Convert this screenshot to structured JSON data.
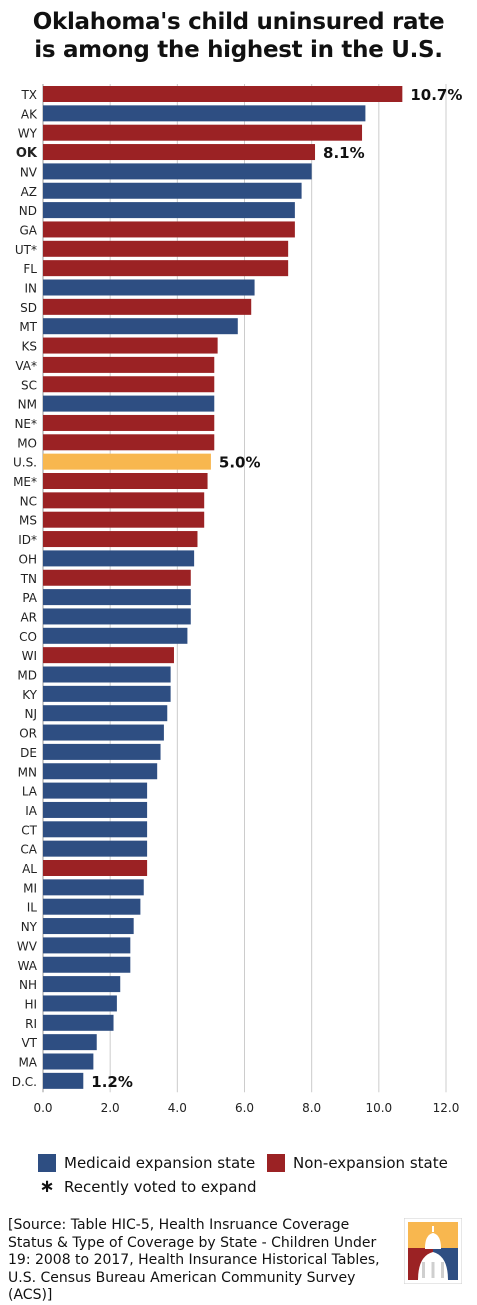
{
  "title_line1": "Oklahoma's child uninsured rate",
  "title_line2": "is among the highest in the U.S.",
  "colors": {
    "expansion": "#2e4e82",
    "non_expansion": "#9b2224",
    "us": "#f8b74f",
    "grid": "#cccccc"
  },
  "chart_data": {
    "type": "bar",
    "orientation": "horizontal",
    "title": "Oklahoma's child uninsured rate is among the highest in the U.S.",
    "xlim": [
      0,
      12
    ],
    "x_ticks": [
      "0.0",
      "2.0",
      "4.0",
      "6.0",
      "8.0",
      "10.0",
      "12.0"
    ],
    "grid": true,
    "bars": [
      {
        "label": "TX",
        "value": 10.7,
        "group": "non_expansion",
        "data_label": "10.7%"
      },
      {
        "label": "AK",
        "value": 9.6,
        "group": "expansion"
      },
      {
        "label": "WY",
        "value": 9.5,
        "group": "non_expansion"
      },
      {
        "label": "OK",
        "value": 8.1,
        "group": "non_expansion",
        "data_label": "8.1%",
        "bold": true
      },
      {
        "label": "NV",
        "value": 8.0,
        "group": "expansion"
      },
      {
        "label": "AZ",
        "value": 7.7,
        "group": "expansion"
      },
      {
        "label": "ND",
        "value": 7.5,
        "group": "expansion"
      },
      {
        "label": "GA",
        "value": 7.5,
        "group": "non_expansion"
      },
      {
        "label": "UT*",
        "value": 7.3,
        "group": "non_expansion"
      },
      {
        "label": "FL",
        "value": 7.3,
        "group": "non_expansion"
      },
      {
        "label": "IN",
        "value": 6.3,
        "group": "expansion"
      },
      {
        "label": "SD",
        "value": 6.2,
        "group": "non_expansion"
      },
      {
        "label": "MT",
        "value": 5.8,
        "group": "expansion"
      },
      {
        "label": "KS",
        "value": 5.2,
        "group": "non_expansion"
      },
      {
        "label": "VA*",
        "value": 5.1,
        "group": "non_expansion"
      },
      {
        "label": "SC",
        "value": 5.1,
        "group": "non_expansion"
      },
      {
        "label": "NM",
        "value": 5.1,
        "group": "expansion"
      },
      {
        "label": "NE*",
        "value": 5.1,
        "group": "non_expansion"
      },
      {
        "label": "MO",
        "value": 5.1,
        "group": "non_expansion"
      },
      {
        "label": "U.S.",
        "value": 5.0,
        "group": "us",
        "data_label": "5.0%"
      },
      {
        "label": "ME*",
        "value": 4.9,
        "group": "non_expansion"
      },
      {
        "label": "NC",
        "value": 4.8,
        "group": "non_expansion"
      },
      {
        "label": "MS",
        "value": 4.8,
        "group": "non_expansion"
      },
      {
        "label": "ID*",
        "value": 4.6,
        "group": "non_expansion"
      },
      {
        "label": "OH",
        "value": 4.5,
        "group": "expansion"
      },
      {
        "label": "TN",
        "value": 4.4,
        "group": "non_expansion"
      },
      {
        "label": "PA",
        "value": 4.4,
        "group": "expansion"
      },
      {
        "label": "AR",
        "value": 4.4,
        "group": "expansion"
      },
      {
        "label": "CO",
        "value": 4.3,
        "group": "expansion"
      },
      {
        "label": "WI",
        "value": 3.9,
        "group": "non_expansion"
      },
      {
        "label": "MD",
        "value": 3.8,
        "group": "expansion"
      },
      {
        "label": "KY",
        "value": 3.8,
        "group": "expansion"
      },
      {
        "label": "NJ",
        "value": 3.7,
        "group": "expansion"
      },
      {
        "label": "OR",
        "value": 3.6,
        "group": "expansion"
      },
      {
        "label": "DE",
        "value": 3.5,
        "group": "expansion"
      },
      {
        "label": "MN",
        "value": 3.4,
        "group": "expansion"
      },
      {
        "label": "LA",
        "value": 3.1,
        "group": "expansion"
      },
      {
        "label": "IA",
        "value": 3.1,
        "group": "expansion"
      },
      {
        "label": "CT",
        "value": 3.1,
        "group": "expansion"
      },
      {
        "label": "CA",
        "value": 3.1,
        "group": "expansion"
      },
      {
        "label": "AL",
        "value": 3.1,
        "group": "non_expansion"
      },
      {
        "label": "MI",
        "value": 3.0,
        "group": "expansion"
      },
      {
        "label": "IL",
        "value": 2.9,
        "group": "expansion"
      },
      {
        "label": "NY",
        "value": 2.7,
        "group": "expansion"
      },
      {
        "label": "WV",
        "value": 2.6,
        "group": "expansion"
      },
      {
        "label": "WA",
        "value": 2.6,
        "group": "expansion"
      },
      {
        "label": "NH",
        "value": 2.3,
        "group": "expansion"
      },
      {
        "label": "HI",
        "value": 2.2,
        "group": "expansion"
      },
      {
        "label": "RI",
        "value": 2.1,
        "group": "expansion"
      },
      {
        "label": "VT",
        "value": 1.6,
        "group": "expansion"
      },
      {
        "label": "MA",
        "value": 1.5,
        "group": "expansion"
      },
      {
        "label": "D.C.",
        "value": 1.2,
        "group": "expansion",
        "data_label": "1.2%"
      }
    ]
  },
  "legend": {
    "expansion_label": "Medicaid expansion state",
    "non_expansion_label": "Non-expansion state",
    "asterisk_symbol": "∗",
    "asterisk_label": "Recently voted to expand"
  },
  "source": "[Source: Table HIC-5, Health Insruance Coverage Status & Type of Coverage by State - Children Under 19: 2008 to 2017, Health Insurance Historical Tables, U.S. Census Bureau American Community Survey (ACS)]",
  "logo_icon": "capitol-dome-logo-icon"
}
